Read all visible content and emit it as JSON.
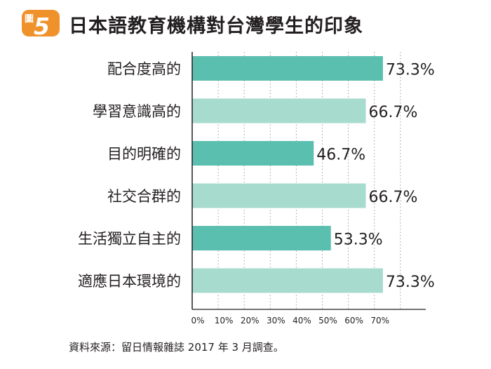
{
  "figure": {
    "badge_char": "圖",
    "badge_number": "5",
    "title": "日本語教育機構對台灣學生的印象"
  },
  "chart_data": {
    "type": "bar",
    "orientation": "horizontal",
    "categories": [
      "配合度高的",
      "學習意識高的",
      "目的明確的",
      "社交合群的",
      "生活獨立自主的",
      "適應日本環境的"
    ],
    "values": [
      73.3,
      66.7,
      46.7,
      66.7,
      53.3,
      73.3
    ],
    "value_labels": [
      "73.3%",
      "66.7%",
      "46.7%",
      "66.7%",
      "53.3%",
      "73.3%"
    ],
    "x_ticks": [
      "0%",
      "10%",
      "20%",
      "30%",
      "40%",
      "50%",
      "60%",
      "70%"
    ],
    "xlim": [
      0,
      80
    ],
    "grid": "vertical dotted",
    "colors": [
      "#5bbfb0",
      "#a7dbce",
      "#5bbfb0",
      "#a7dbce",
      "#5bbfb0",
      "#a7dbce"
    ]
  },
  "source": "資料來源：留日情報雜誌 2017 年 3 月調查。",
  "colors": {
    "badge": "#f0922b",
    "bar_dark": "#5bbfb0",
    "bar_light": "#a7dbce",
    "axis": "#231f20",
    "grid": "#9d9d9d"
  }
}
